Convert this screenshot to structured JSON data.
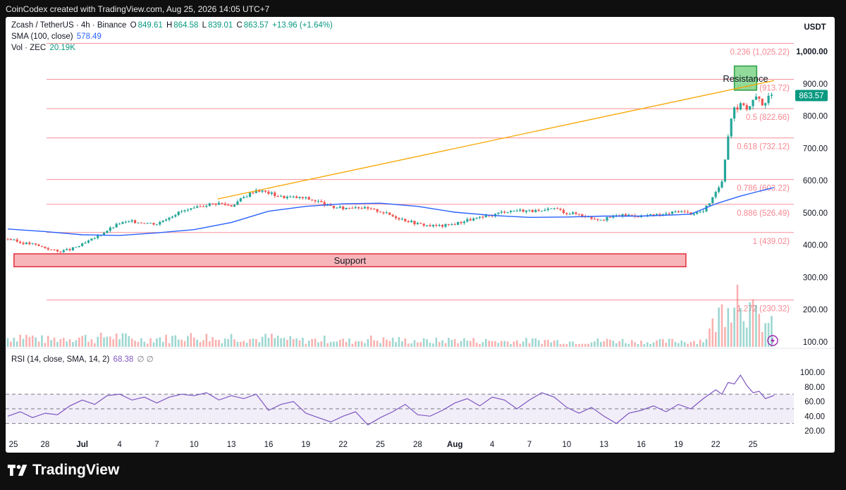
{
  "header": {
    "text": "CoinCodex created with TradingView.com, Aug 25, 2026 14:05 UTC+7"
  },
  "footer": {
    "brand": "TradingView"
  },
  "legend": {
    "symbol": "Zcash / TetherUS · 4h · Binance",
    "o_label": "O",
    "o": "849.61",
    "h_label": "H",
    "h": "864.58",
    "l_label": "L",
    "l": "839.01",
    "c_label": "C",
    "c": "863.57",
    "change": "+13.96 (+1.64%)",
    "sma_label": "SMA (100, close)",
    "sma_value": "578.49",
    "vol_label": "Vol · ZEC",
    "vol_value": "20.19K",
    "rsi_label": "RSI (14, close, SMA, 14, 2)",
    "rsi_value": "68.38",
    "rsi_extra": "∅ ∅"
  },
  "colors": {
    "up": "#26a69a",
    "down": "#ef5350",
    "sma": "#2962ff",
    "rsi": "#7e57c2",
    "trend": "#f7a600",
    "fib": "#f23645"
  },
  "chart_data": {
    "type": "candlestick",
    "currency": "USDT",
    "last_price": "863.57",
    "y_ticks": [
      "1,000.00",
      "900.00",
      "800.00",
      "700.00",
      "600.00",
      "500.00",
      "400.00",
      "300.00",
      "200.00",
      "100.00"
    ],
    "y_tick_values": [
      1000,
      900,
      800,
      700,
      600,
      500,
      400,
      300,
      200,
      100
    ],
    "rsi_ticks": [
      "100.00",
      "80.00",
      "60.00",
      "40.00",
      "20.00"
    ],
    "rsi_tick_values": [
      100,
      80,
      60,
      40,
      20
    ],
    "rsi_bands": [
      70,
      50,
      30
    ],
    "x_ticks": [
      "25",
      "28",
      "Jul",
      "4",
      "7",
      "10",
      "13",
      "16",
      "19",
      "22",
      "25",
      "28",
      "Aug",
      "4",
      "7",
      "10",
      "13",
      "16",
      "19",
      "22",
      "25"
    ],
    "fib_levels": [
      {
        "label": "0.236 (1,025.22)",
        "value": 1025.22
      },
      {
        "label": "0.382 (913.72)",
        "value": 913.72
      },
      {
        "label": "0.5 (822.66)",
        "value": 822.66
      },
      {
        "label": "0.618 (732.12)",
        "value": 732.12
      },
      {
        "label": "0.786 (603.22)",
        "value": 603.22
      },
      {
        "label": "0.886 (526.49)",
        "value": 526.49
      },
      {
        "label": "1 (439.02)",
        "value": 439.02
      },
      {
        "label": "1.272 (230.32)",
        "value": 230.32
      }
    ],
    "zones": [
      {
        "label": "Resistance",
        "low": 880,
        "high": 955,
        "day_start": 58.5,
        "day_end": 60.3
      },
      {
        "label": "Support",
        "low": 333,
        "high": 373,
        "day_start": 0.5,
        "day_end": 54.6
      }
    ],
    "trendline": {
      "day_start": 16.9,
      "price_start": 543,
      "day_end": 61.7,
      "price_end": 910
    },
    "price_path": [
      [
        0,
        420
      ],
      [
        1,
        408
      ],
      [
        2,
        403
      ],
      [
        3,
        392
      ],
      [
        4,
        380
      ],
      [
        5,
        386
      ],
      [
        6,
        402
      ],
      [
        7,
        422
      ],
      [
        8,
        446
      ],
      [
        9,
        468
      ],
      [
        10,
        473
      ],
      [
        11,
        470
      ],
      [
        12,
        466
      ],
      [
        13,
        488
      ],
      [
        14,
        505
      ],
      [
        15,
        512
      ],
      [
        16,
        526
      ],
      [
        17,
        530
      ],
      [
        18,
        522
      ],
      [
        19,
        548
      ],
      [
        20,
        572
      ],
      [
        21,
        562
      ],
      [
        22,
        550
      ],
      [
        23,
        548
      ],
      [
        24,
        545
      ],
      [
        25,
        535
      ],
      [
        26,
        518
      ],
      [
        27,
        514
      ],
      [
        28,
        520
      ],
      [
        29,
        512
      ],
      [
        30,
        505
      ],
      [
        31,
        490
      ],
      [
        32,
        478
      ],
      [
        33,
        466
      ],
      [
        34,
        460
      ],
      [
        35,
        460
      ],
      [
        36,
        466
      ],
      [
        37,
        478
      ],
      [
        38,
        484
      ],
      [
        39,
        493
      ],
      [
        40,
        505
      ],
      [
        41,
        508
      ],
      [
        42,
        507
      ],
      [
        43,
        503
      ],
      [
        44,
        515
      ],
      [
        45,
        500
      ],
      [
        46,
        496
      ],
      [
        47,
        484
      ],
      [
        48,
        480
      ],
      [
        49,
        491
      ],
      [
        50,
        493
      ],
      [
        51,
        490
      ],
      [
        52,
        492
      ],
      [
        53,
        496
      ],
      [
        54,
        506
      ],
      [
        55,
        498
      ],
      [
        56,
        505
      ],
      [
        57,
        560
      ],
      [
        57.5,
        600
      ],
      [
        58,
        740
      ],
      [
        58.4,
        830
      ],
      [
        58.8,
        825
      ],
      [
        59.2,
        842
      ],
      [
        59.6,
        818
      ],
      [
        60,
        848
      ],
      [
        60.4,
        860
      ],
      [
        60.8,
        835
      ],
      [
        61.2,
        856
      ],
      [
        61.7,
        863.57
      ]
    ],
    "sma_path": [
      [
        0,
        450
      ],
      [
        3,
        442
      ],
      [
        6,
        432
      ],
      [
        9,
        430
      ],
      [
        12,
        438
      ],
      [
        15,
        448
      ],
      [
        18,
        470
      ],
      [
        21,
        505
      ],
      [
        24,
        520
      ],
      [
        27,
        528
      ],
      [
        30,
        530
      ],
      [
        33,
        520
      ],
      [
        36,
        502
      ],
      [
        39,
        492
      ],
      [
        42,
        486
      ],
      [
        45,
        487
      ],
      [
        48,
        490
      ],
      [
        51,
        490
      ],
      [
        54,
        494
      ],
      [
        55,
        496
      ],
      [
        56,
        512
      ],
      [
        57,
        528
      ],
      [
        58,
        540
      ],
      [
        59,
        552
      ],
      [
        60,
        562
      ],
      [
        61,
        572
      ],
      [
        61.7,
        578.49
      ]
    ],
    "rsi_path": [
      [
        0,
        40
      ],
      [
        1,
        46
      ],
      [
        2,
        38
      ],
      [
        3,
        44
      ],
      [
        4,
        42
      ],
      [
        5,
        54
      ],
      [
        6,
        62
      ],
      [
        7,
        56
      ],
      [
        8,
        68
      ],
      [
        9,
        70
      ],
      [
        10,
        62
      ],
      [
        11,
        66
      ],
      [
        12,
        58
      ],
      [
        13,
        66
      ],
      [
        14,
        70
      ],
      [
        15,
        68
      ],
      [
        16,
        72
      ],
      [
        17,
        62
      ],
      [
        18,
        68
      ],
      [
        19,
        64
      ],
      [
        20,
        70
      ],
      [
        21,
        48
      ],
      [
        22,
        56
      ],
      [
        23,
        60
      ],
      [
        24,
        44
      ],
      [
        25,
        38
      ],
      [
        26,
        32
      ],
      [
        27,
        40
      ],
      [
        28,
        46
      ],
      [
        29,
        28
      ],
      [
        30,
        38
      ],
      [
        31,
        46
      ],
      [
        32,
        56
      ],
      [
        33,
        42
      ],
      [
        34,
        40
      ],
      [
        35,
        48
      ],
      [
        36,
        58
      ],
      [
        37,
        64
      ],
      [
        38,
        54
      ],
      [
        39,
        66
      ],
      [
        40,
        62
      ],
      [
        41,
        50
      ],
      [
        42,
        62
      ],
      [
        43,
        72
      ],
      [
        44,
        66
      ],
      [
        45,
        52
      ],
      [
        46,
        44
      ],
      [
        47,
        52
      ],
      [
        48,
        40
      ],
      [
        49,
        30
      ],
      [
        50,
        44
      ],
      [
        51,
        48
      ],
      [
        52,
        54
      ],
      [
        53,
        46
      ],
      [
        54,
        56
      ],
      [
        55,
        50
      ],
      [
        56,
        64
      ],
      [
        57,
        76
      ],
      [
        57.5,
        70
      ],
      [
        58,
        86
      ],
      [
        58.5,
        84
      ],
      [
        59,
        96
      ],
      [
        59.5,
        82
      ],
      [
        60,
        72
      ],
      [
        60.5,
        74
      ],
      [
        61,
        64
      ],
      [
        61.7,
        68.38
      ]
    ],
    "volume_spikes": [
      [
        0,
        55
      ],
      [
        1,
        70
      ],
      [
        2,
        60
      ],
      [
        3,
        45
      ],
      [
        4,
        50
      ],
      [
        5,
        58
      ],
      [
        6,
        62
      ],
      [
        7,
        48
      ],
      [
        8,
        70
      ],
      [
        9,
        65
      ],
      [
        10,
        50
      ],
      [
        11,
        44
      ],
      [
        12,
        56
      ],
      [
        13,
        52
      ],
      [
        14,
        72
      ],
      [
        15,
        60
      ],
      [
        16,
        62
      ],
      [
        17,
        46
      ],
      [
        18,
        66
      ],
      [
        19,
        58
      ],
      [
        20,
        48
      ],
      [
        21,
        60
      ],
      [
        22,
        52
      ],
      [
        23,
        42
      ],
      [
        24,
        40
      ],
      [
        25,
        44
      ],
      [
        26,
        50
      ],
      [
        27,
        38
      ],
      [
        28,
        36
      ],
      [
        29,
        52
      ],
      [
        30,
        42
      ],
      [
        31,
        46
      ],
      [
        32,
        40
      ],
      [
        33,
        38
      ],
      [
        34,
        36
      ],
      [
        35,
        40
      ],
      [
        36,
        44
      ],
      [
        37,
        42
      ],
      [
        38,
        36
      ],
      [
        39,
        38
      ],
      [
        40,
        34
      ],
      [
        41,
        36
      ],
      [
        42,
        38
      ],
      [
        43,
        40
      ],
      [
        44,
        36
      ],
      [
        45,
        34
      ],
      [
        46,
        32
      ],
      [
        47,
        36
      ],
      [
        48,
        38
      ],
      [
        49,
        42
      ],
      [
        50,
        34
      ],
      [
        51,
        32
      ],
      [
        52,
        30
      ],
      [
        53,
        34
      ],
      [
        54,
        38
      ],
      [
        55,
        36
      ],
      [
        56,
        42
      ],
      [
        57,
        160
      ],
      [
        57.5,
        230
      ],
      [
        58,
        320
      ],
      [
        58.5,
        360
      ],
      [
        59,
        340
      ],
      [
        59.5,
        260
      ],
      [
        60,
        200
      ],
      [
        60.5,
        170
      ],
      [
        61,
        150
      ],
      [
        61.7,
        120
      ]
    ]
  }
}
